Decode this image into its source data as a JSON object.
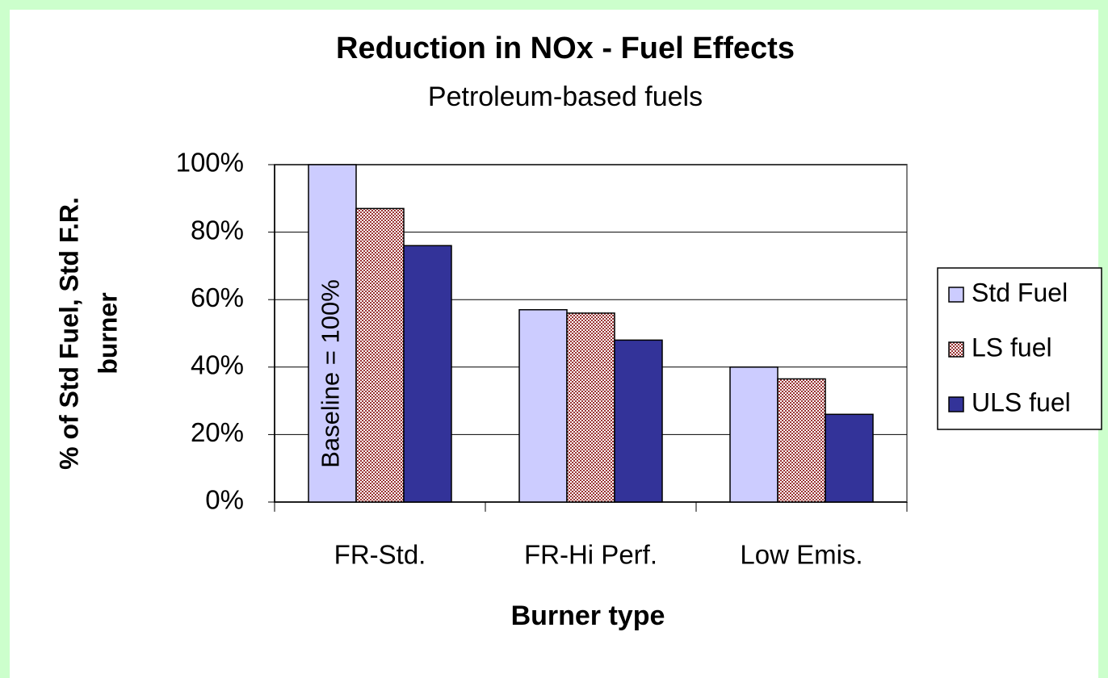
{
  "chart_data": {
    "type": "bar",
    "title": "Reduction in NOx - Fuel Effects",
    "subtitle": "Petroleum-based fuels",
    "y_label": [
      "% of Std Fuel, Std F.R.",
      "burner"
    ],
    "x_label": "Burner type",
    "annotation": "Baseline = 100%",
    "categories": [
      "FR-Std.",
      "FR-Hi Perf.",
      "Low Emis."
    ],
    "series": [
      {
        "name": "Std Fuel",
        "color": "#ccccff",
        "values": [
          100,
          57,
          40
        ]
      },
      {
        "name": "LS fuel",
        "color": "#993333",
        "pattern": "checker",
        "values": [
          87,
          56,
          36.5
        ]
      },
      {
        "name": "ULS fuel",
        "color": "#333399",
        "values": [
          76,
          48,
          26
        ]
      }
    ],
    "ylim": [
      0,
      100
    ],
    "yticks": [
      {
        "value": 0,
        "label": "0%"
      },
      {
        "value": 20,
        "label": "20%"
      },
      {
        "value": 40,
        "label": "40%"
      },
      {
        "value": 60,
        "label": "60%"
      },
      {
        "value": 80,
        "label": "80%"
      },
      {
        "value": 100,
        "label": "100%"
      }
    ],
    "grid": true,
    "legend": "right"
  }
}
